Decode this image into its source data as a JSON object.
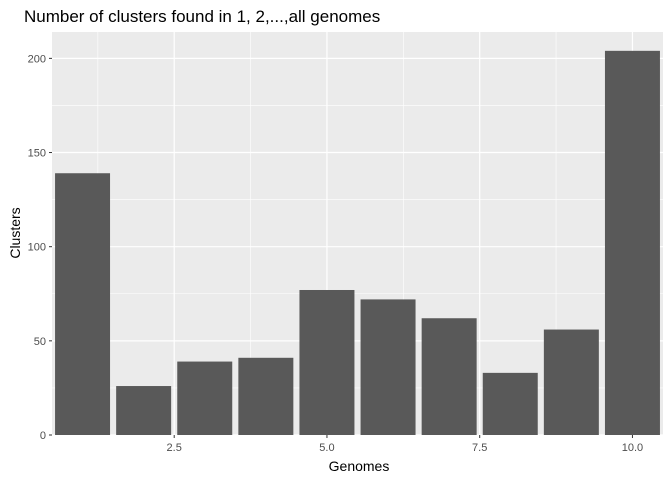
{
  "chart_data": {
    "type": "bar",
    "title": "Number of clusters found in 1, 2,...,all genomes",
    "xlabel": "Genomes",
    "ylabel": "Clusters",
    "x": [
      1,
      2,
      3,
      4,
      5,
      6,
      7,
      8,
      9,
      10
    ],
    "values": [
      139,
      26,
      39,
      41,
      77,
      72,
      62,
      33,
      56,
      204
    ],
    "xlim": [
      0.5,
      10.5
    ],
    "ylim": [
      0,
      214
    ],
    "xticks": [
      2.5,
      5.0,
      7.5,
      10.0
    ],
    "xtick_labels": [
      "2.5",
      "5.0",
      "7.5",
      "10.0"
    ],
    "yticks": [
      0,
      50,
      100,
      150,
      200
    ],
    "ytick_labels": [
      "0",
      "50",
      "100",
      "150",
      "200"
    ],
    "grid": true,
    "colors": {
      "panel": "#ebebeb",
      "grid": "#ffffff",
      "bar": "#595959",
      "tick": "#333333"
    }
  }
}
